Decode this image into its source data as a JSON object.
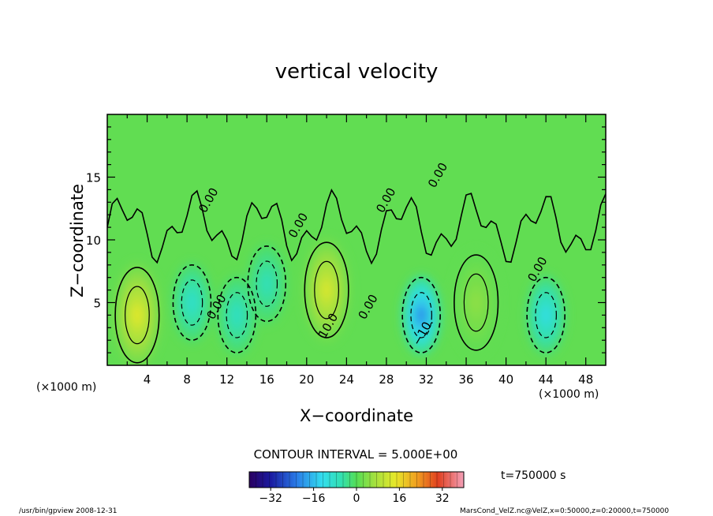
{
  "chart_data": {
    "type": "heatmap",
    "title": "vertical velocity",
    "xlabel": "X−coordinate",
    "ylabel": "Z−coordinate",
    "x_unit_left": "(×1000 m)",
    "x_unit_right": "(×1000 m)",
    "xlim": [
      0,
      50
    ],
    "ylim": [
      0,
      20
    ],
    "x_ticks": [
      4,
      8,
      12,
      16,
      20,
      24,
      28,
      32,
      36,
      40,
      44,
      48
    ],
    "y_ticks": [
      5,
      10,
      15
    ],
    "contour_interval_text": "CONTOUR INTERVAL = 5.000E+00",
    "contour_labels": [
      {
        "text": "0.00",
        "x": 10.5,
        "y": 13.0
      },
      {
        "text": "0.00",
        "x": 19.5,
        "y": 11.0
      },
      {
        "text": "0.00",
        "x": 11.3,
        "y": 4.5
      },
      {
        "text": "0.00",
        "x": 26.5,
        "y": 4.5
      },
      {
        "text": "0.00",
        "x": 28.3,
        "y": 13.0
      },
      {
        "text": "0.00",
        "x": 33.5,
        "y": 15.0
      },
      {
        "text": "0.00",
        "x": 43.5,
        "y": 7.5
      },
      {
        "text": "10.0",
        "x": 22.5,
        "y": 3.0
      },
      {
        "text": "−10.",
        "x": 32.0,
        "y": 2.5
      }
    ],
    "features": [
      {
        "kind": "updraft",
        "x": 3.0,
        "z": 4.0,
        "peak": 14
      },
      {
        "kind": "downdraft",
        "x": 8.5,
        "z": 5.0,
        "peak": -9
      },
      {
        "kind": "downdraft",
        "x": 13.0,
        "z": 4.0,
        "peak": -8
      },
      {
        "kind": "downdraft",
        "x": 16.0,
        "z": 6.5,
        "peak": -7
      },
      {
        "kind": "updraft",
        "x": 22.0,
        "z": 6.0,
        "peak": 13
      },
      {
        "kind": "downdraft",
        "x": 31.5,
        "z": 4.0,
        "peak": -22
      },
      {
        "kind": "updraft",
        "x": 37.0,
        "z": 5.0,
        "peak": 5
      },
      {
        "kind": "downdraft",
        "x": 44.0,
        "z": 4.0,
        "peak": -12
      }
    ],
    "colorbar": {
      "min": -40,
      "max": 40,
      "ticks": [
        -32,
        -16,
        0,
        16,
        32
      ],
      "tick_labels": [
        "−32",
        "−16",
        "0",
        "16",
        "32"
      ]
    },
    "grid": false
  },
  "time_text": "t=750000 s",
  "footer_left": "/usr/bin/gpview   2008-12-31",
  "footer_right": "MarsCond_VelZ.nc@VelZ,x=0:50000,z=0:20000,t=750000"
}
